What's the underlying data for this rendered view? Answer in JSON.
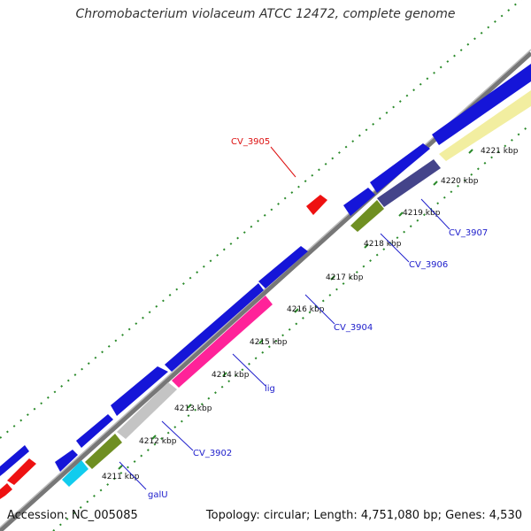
{
  "title": "Chromobacterium violaceum ATCC 12472, complete genome",
  "footer": {
    "accession": "Accession: NC_005085",
    "summary": "Topology: circular; Length: 4,751,080 bp; Genes: 4,530"
  },
  "colors": {
    "background": "#ffffff",
    "backbone": "#888888",
    "forward_gene": "#1010e6",
    "reverse_gene_red": "#ee1111",
    "tick_green": "#2a8a2a",
    "label_blue": "#2020cc",
    "label_red": "#dd1111"
  },
  "ticks": [
    {
      "label": "4211 kbp"
    },
    {
      "label": "4212 kbp"
    },
    {
      "label": "4213 kbp"
    },
    {
      "label": "4214 kbp"
    },
    {
      "label": "4215 kbp"
    },
    {
      "label": "4216 kbp"
    },
    {
      "label": "4217 kbp"
    },
    {
      "label": "4218 kbp"
    },
    {
      "label": "4219 kbp"
    },
    {
      "label": "4220 kbp"
    },
    {
      "label": "4221 kbp"
    }
  ],
  "gene_labels": [
    {
      "text": "galU",
      "color": "#2020cc"
    },
    {
      "text": "CV_3902",
      "color": "#2020cc"
    },
    {
      "text": "lig",
      "color": "#2020cc"
    },
    {
      "text": "CV_3904",
      "color": "#2020cc"
    },
    {
      "text": "CV_3905",
      "color": "#dd1111"
    },
    {
      "text": "CV_3906",
      "color": "#2020cc"
    },
    {
      "text": "CV_3907",
      "color": "#2020cc"
    }
  ]
}
